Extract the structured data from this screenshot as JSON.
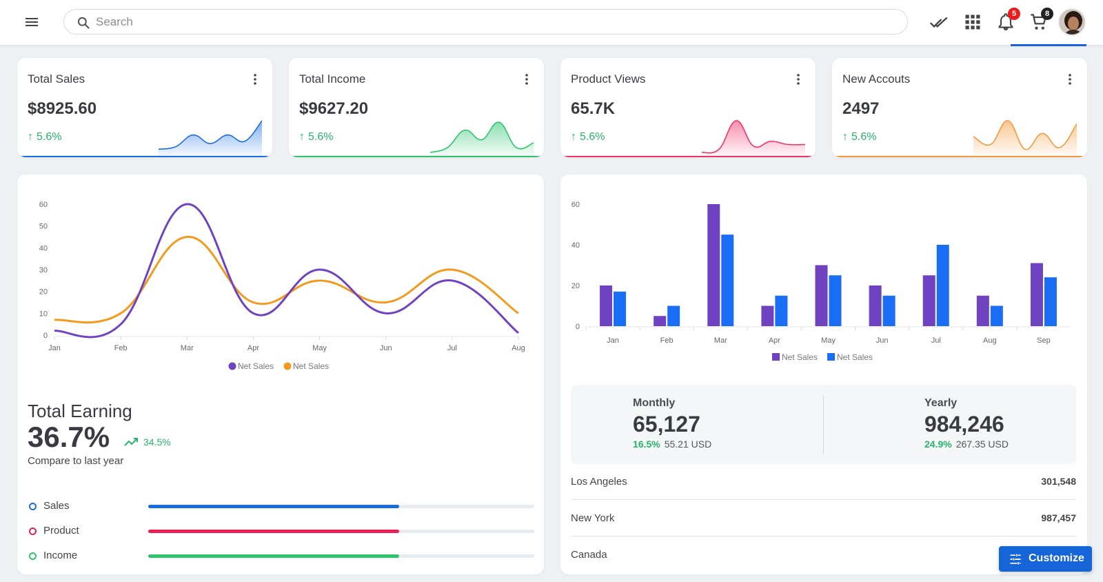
{
  "topbar": {
    "search_placeholder": "Search",
    "icons": [
      "menu-icon",
      "search-icon",
      "done-all-icon",
      "apps-grid-icon",
      "bell-icon",
      "cart-icon",
      "avatar"
    ],
    "notifications_count": "5",
    "cart_count": "8",
    "colors": {
      "notification_badge": "#f01a1a",
      "cart_badge": "#222222"
    }
  },
  "stats": [
    {
      "title": "Total Sales",
      "value": "$8925.60",
      "trend": "5.6%",
      "color": "#1a6de0",
      "spark": [
        0.1,
        0.18,
        0.55,
        0.28,
        0.55,
        0.35,
        1.0
      ]
    },
    {
      "title": "Total Income",
      "value": "$9627.20",
      "trend": "5.6%",
      "color": "#2ec46e",
      "spark": [
        0.0,
        0.15,
        0.7,
        0.4,
        0.95,
        0.15,
        0.3
      ]
    },
    {
      "title": "Product Views",
      "value": "65.7K",
      "trend": "5.6%",
      "color": "#f0346a",
      "spark": [
        0.0,
        0.1,
        1.0,
        0.2,
        0.35,
        0.25,
        0.25
      ]
    },
    {
      "title": "New Accouts",
      "value": "2497",
      "trend": "5.6%",
      "color": "#f39a3c",
      "spark": [
        0.5,
        0.25,
        1.0,
        0.1,
        0.6,
        0.15,
        0.9
      ]
    }
  ],
  "line_chart": {
    "chart_data": {
      "type": "line",
      "x": [
        "Jan",
        "Feb",
        "Mar",
        "Apr",
        "May",
        "Jun",
        "Jul",
        "Aug"
      ],
      "yticks": [
        0,
        10,
        20,
        30,
        40,
        50,
        60
      ],
      "ylim": [
        0,
        60
      ],
      "series": [
        {
          "name": "Net Sales",
          "color": "#6f42c1",
          "values": [
            2,
            5,
            60,
            10,
            30,
            10,
            25,
            1
          ]
        },
        {
          "name": "Net Sales",
          "color": "#f39a1e",
          "values": [
            7,
            10,
            45,
            15,
            25,
            15,
            30,
            10
          ]
        }
      ]
    }
  },
  "earning": {
    "title": "Total Earning",
    "value": "36.7%",
    "delta": "34.5%",
    "subtitle": "Compare to last year"
  },
  "progress": [
    {
      "label": "Sales",
      "color": "#1a6de0",
      "fraction": 0.65
    },
    {
      "label": "Product",
      "color": "#e91e55",
      "fraction": 0.65
    },
    {
      "label": "Income",
      "color": "#2ec46e",
      "fraction": 0.65
    }
  ],
  "bar_chart": {
    "chart_data": {
      "type": "bar",
      "categories": [
        "Jan",
        "Feb",
        "Mar",
        "Apr",
        "May",
        "Jun",
        "Jul",
        "Aug",
        "Sep"
      ],
      "yticks": [
        0,
        20,
        40,
        60
      ],
      "ylim": [
        0,
        60
      ],
      "series": [
        {
          "name": "Net Sales",
          "color": "#6f42c1",
          "values": [
            20,
            5,
            60,
            10,
            30,
            20,
            25,
            15,
            31
          ]
        },
        {
          "name": "Net Sales",
          "color": "#1a6df5",
          "values": [
            17,
            10,
            45,
            15,
            25,
            15,
            40,
            10,
            24
          ]
        }
      ]
    }
  },
  "summary": {
    "monthly": {
      "label": "Monthly",
      "value": "65,127",
      "pct": "16.5%",
      "amount": "55.21 USD"
    },
    "yearly": {
      "label": "Yearly",
      "value": "984,246",
      "pct": "24.9%",
      "amount": "267.35 USD"
    }
  },
  "cities": [
    {
      "name": "Los Angeles",
      "value": "301,548"
    },
    {
      "name": "New York",
      "value": "987,457"
    },
    {
      "name": "Canada",
      "value": ""
    }
  ],
  "customize_label": "Customize"
}
